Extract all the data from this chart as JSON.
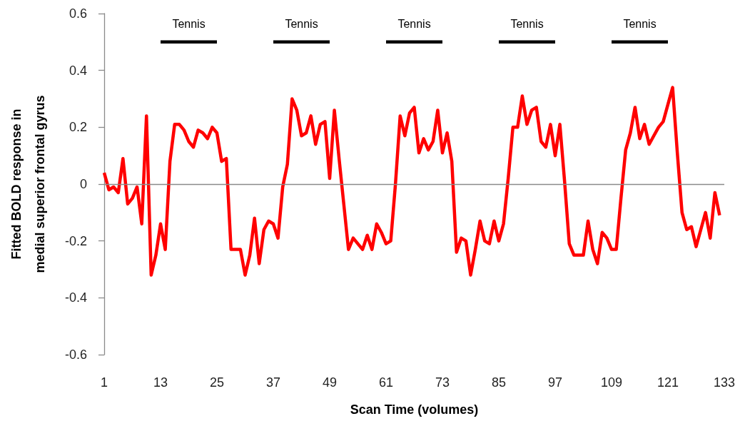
{
  "chart_data": {
    "type": "line",
    "xlabel": "Scan Time (volumes)",
    "ylabel": "Fitted BOLD response in medial superior frontal gyrus",
    "x": [
      1,
      2,
      3,
      4,
      5,
      6,
      7,
      8,
      9,
      10,
      11,
      12,
      13,
      14,
      15,
      16,
      17,
      18,
      19,
      20,
      21,
      22,
      23,
      24,
      25,
      26,
      27,
      28,
      29,
      30,
      31,
      32,
      33,
      34,
      35,
      36,
      37,
      38,
      39,
      40,
      41,
      42,
      43,
      44,
      45,
      46,
      47,
      48,
      49,
      50,
      51,
      52,
      53,
      54,
      55,
      56,
      57,
      58,
      59,
      60,
      61,
      62,
      63,
      64,
      65,
      66,
      67,
      68,
      69,
      70,
      71,
      72,
      73,
      74,
      75,
      76,
      77,
      78,
      79,
      80,
      81,
      82,
      83,
      84,
      85,
      86,
      87,
      88,
      89,
      90,
      91,
      92,
      93,
      94,
      95,
      96,
      97,
      98,
      99,
      100,
      101,
      102,
      103,
      104,
      105,
      106,
      107,
      108,
      109,
      110,
      111,
      112,
      113,
      114,
      115,
      116,
      117,
      118,
      119,
      120,
      121,
      122,
      123,
      124,
      125,
      126,
      127,
      128,
      129,
      130,
      131,
      132
    ],
    "series": [
      {
        "color": "#ff0000",
        "values": [
          0.04,
          -0.02,
          -0.01,
          -0.03,
          0.09,
          -0.07,
          -0.05,
          -0.01,
          -0.14,
          0.24,
          -0.32,
          -0.25,
          -0.14,
          -0.23,
          0.08,
          0.21,
          0.21,
          0.19,
          0.15,
          0.13,
          0.19,
          0.18,
          0.16,
          0.2,
          0.18,
          0.08,
          0.09,
          -0.23,
          -0.23,
          -0.23,
          -0.32,
          -0.25,
          -0.12,
          -0.28,
          -0.16,
          -0.13,
          -0.14,
          -0.19,
          -0.01,
          0.07,
          0.3,
          0.26,
          0.17,
          0.18,
          0.24,
          0.14,
          0.21,
          0.22,
          0.02,
          0.26,
          0.09,
          -0.07,
          -0.23,
          -0.19,
          -0.21,
          -0.23,
          -0.18,
          -0.23,
          -0.14,
          -0.17,
          -0.21,
          -0.2,
          0,
          0.24,
          0.17,
          0.25,
          0.27,
          0.11,
          0.16,
          0.12,
          0.15,
          0.26,
          0.11,
          0.18,
          0.08,
          -0.24,
          -0.19,
          -0.2,
          -0.32,
          -0.23,
          -0.13,
          -0.2,
          -0.21,
          -0.13,
          -0.2,
          -0.14,
          0.02,
          0.2,
          0.2,
          0.31,
          0.21,
          0.26,
          0.27,
          0.15,
          0.13,
          0.21,
          0.1,
          0.21,
          0.01,
          -0.21,
          -0.25,
          -0.25,
          -0.25,
          -0.13,
          -0.23,
          -0.28,
          -0.17,
          -0.19,
          -0.23,
          -0.23,
          -0.05,
          0.12,
          0.18,
          0.27,
          0.16,
          0.21,
          0.14,
          0.17,
          0.2,
          0.22,
          0.28,
          0.34,
          0.11,
          -0.1,
          -0.16,
          -0.15,
          -0.22,
          -0.16,
          -0.1,
          -0.19,
          -0.03,
          -0.11
        ]
      },
      {
        "name": "Tennis",
        "color": "#000000",
        "x": [
          13,
          25
        ],
        "values": [
          0.5,
          0.5
        ]
      },
      {
        "name": "Tennis",
        "color": "#000000",
        "x": [
          37,
          49
        ],
        "values": [
          0.5,
          0.5
        ]
      },
      {
        "name": "Tennis",
        "color": "#000000",
        "x": [
          61,
          73
        ],
        "values": [
          0.5,
          0.5
        ]
      },
      {
        "name": "Tennis",
        "color": "#000000",
        "x": [
          85,
          97
        ],
        "values": [
          0.5,
          0.5
        ]
      },
      {
        "name": "Tennis",
        "color": "#000000",
        "x": [
          109,
          121
        ],
        "values": [
          0.5,
          0.5
        ]
      }
    ],
    "xlim": [
      1,
      133
    ],
    "xticks": [
      1,
      13,
      25,
      37,
      49,
      61,
      73,
      85,
      97,
      109,
      121,
      133
    ],
    "ylim": [
      -0.6,
      0.6
    ],
    "yticks": [
      -0.6,
      -0.4,
      -0.2,
      0,
      0.2,
      0.4,
      0.6
    ],
    "ref_lines": [
      {
        "axis": "y",
        "value": 0,
        "color": "#8a8a8a"
      }
    ],
    "grid": false,
    "marker": "none"
  }
}
